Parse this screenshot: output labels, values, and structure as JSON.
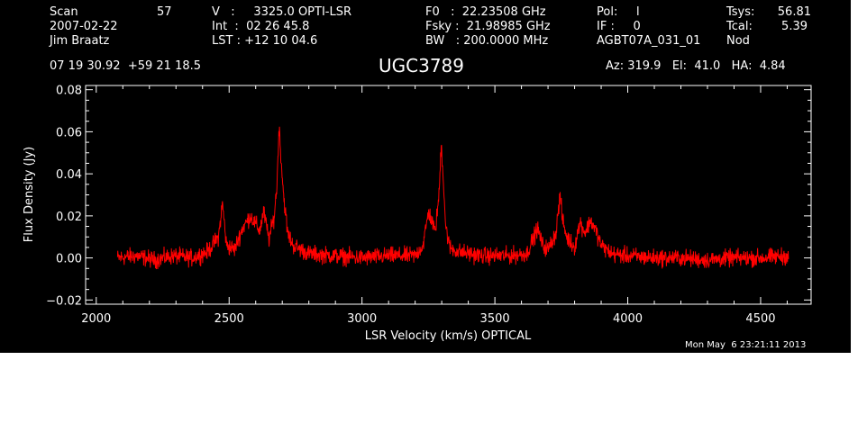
{
  "header": {
    "scan_label": "Scan",
    "scan_value": "57",
    "date": "2007-02-22",
    "observer": "Jim Braatz",
    "v_line": "V   :     3325.0 OPTI-LSR",
    "int_line": "Int  :  02 26 45.8",
    "lst_line": "LST : +12 10 04.6",
    "f0_line": "F0   :  22.23508 GHz",
    "fsky_line": "Fsky :  21.98985 GHz",
    "bw_line": "BW   : 200.0000 MHz",
    "pol_line": "Pol:     l",
    "if_line": "IF :     0",
    "project": "AGBT07A_031_01",
    "tsys_label": "Tsys:",
    "tsys_value": "56.81",
    "tcal_label": "Tcal:",
    "tcal_value": "5.39",
    "mode": "Nod",
    "coords": "07 19 30.92  +59 21 18.5",
    "source": "UGC3789",
    "pointing": "Az: 319.9   El:  41.0   HA:  4.84"
  },
  "footer": {
    "timestamp": "Mon May  6 23:21:11 2013"
  },
  "colors": {
    "background": "#000000",
    "axes": "#ffffff",
    "spectrum": "#ff0000"
  },
  "chart_data": {
    "type": "line",
    "xlabel": "LSR Velocity (km/s) OPTICAL",
    "ylabel": "Flux Density (Jy)",
    "xlim": [
      1960,
      4690
    ],
    "ylim": [
      -0.022,
      0.082
    ],
    "xticks": [
      2000,
      2500,
      3000,
      3500,
      4000,
      4500
    ],
    "xtick_labels": [
      "2000",
      "2500",
      "3000",
      "3500",
      "4000",
      "4500"
    ],
    "yticks": [
      -0.02,
      0.0,
      0.02,
      0.04,
      0.06,
      0.08
    ],
    "ytick_labels": [
      "−0.02",
      "0.00",
      "0.02",
      "0.04",
      "0.06",
      "0.08"
    ],
    "grid": false,
    "series": [
      {
        "x": [
          2080,
          2150,
          2220,
          2290,
          2360,
          2420,
          2460,
          2475,
          2490,
          2520,
          2550,
          2565,
          2580,
          2600,
          2615,
          2630,
          2650,
          2670,
          2680,
          2688,
          2695,
          2705,
          2720,
          2740,
          2800,
          2900,
          3000,
          3100,
          3200,
          3230,
          3250,
          3262,
          3275,
          3290,
          3298,
          3305,
          3315,
          3330,
          3360,
          3450,
          3550,
          3620,
          3660,
          3680,
          3700,
          3730,
          3745,
          3755,
          3770,
          3800,
          3820,
          3840,
          3860,
          3880,
          3900,
          3940,
          4000,
          4100,
          4200,
          4300,
          4400,
          4500,
          4605
        ],
        "y": [
          0.0,
          0.001,
          -0.001,
          0.001,
          0.0,
          0.003,
          0.01,
          0.026,
          0.006,
          0.004,
          0.014,
          0.017,
          0.02,
          0.016,
          0.013,
          0.022,
          0.009,
          0.02,
          0.035,
          0.063,
          0.048,
          0.03,
          0.012,
          0.006,
          0.002,
          0.001,
          0.0,
          0.001,
          0.001,
          0.006,
          0.022,
          0.018,
          0.012,
          0.03,
          0.055,
          0.04,
          0.015,
          0.005,
          0.003,
          0.001,
          0.001,
          0.002,
          0.014,
          0.006,
          0.004,
          0.012,
          0.03,
          0.018,
          0.01,
          0.005,
          0.017,
          0.012,
          0.018,
          0.013,
          0.006,
          0.002,
          0.001,
          0.0,
          0.0,
          -0.001,
          0.0,
          0.0,
          0.001
        ]
      }
    ]
  }
}
